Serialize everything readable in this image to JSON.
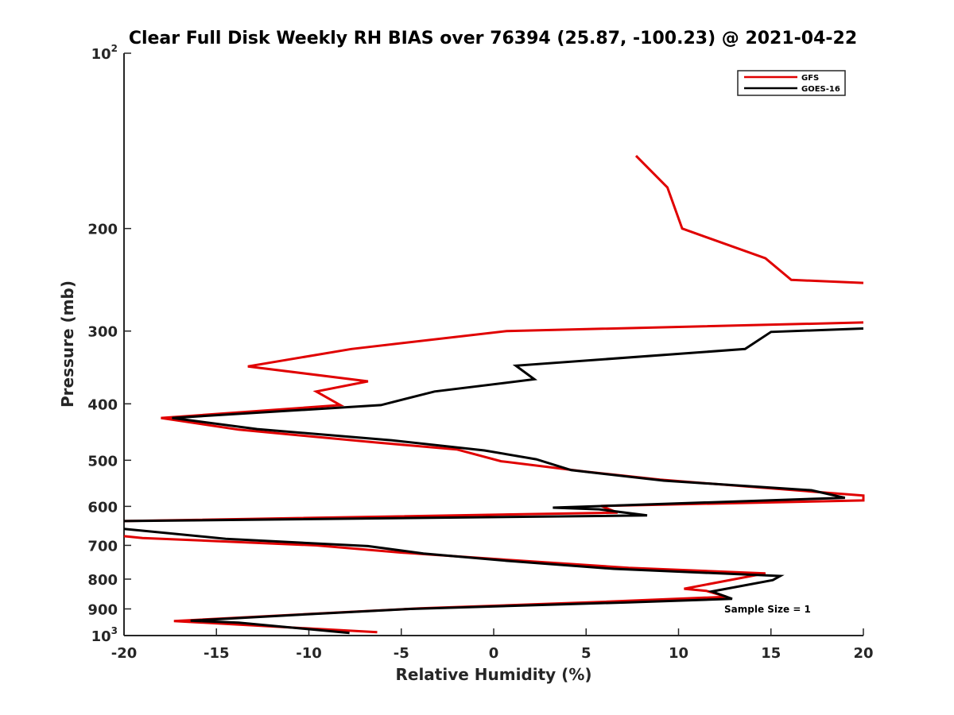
{
  "chart_data": {
    "type": "line",
    "title": "Clear Full Disk Weekly RH BIAS over 76394 (25.87, -100.23) @ 2021-04-22",
    "xlabel": "Relative Humidity (%)",
    "ylabel": "Pressure (mb)",
    "xlim": [
      -20,
      20
    ],
    "ylim": [
      100,
      1000
    ],
    "y_scale": "log",
    "y_reversed": true,
    "grid": false,
    "legend_position": "top-right",
    "x_ticks": [
      "-20",
      "-15",
      "-10",
      "-5",
      "0",
      "5",
      "10",
      "15",
      "20"
    ],
    "y_ticks": [
      {
        "base": "10",
        "sup": "2"
      },
      {
        "base": "200",
        "sup": ""
      },
      {
        "base": "300",
        "sup": ""
      },
      {
        "base": "400",
        "sup": ""
      },
      {
        "base": "500",
        "sup": ""
      },
      {
        "base": "600",
        "sup": ""
      },
      {
        "base": "700",
        "sup": ""
      },
      {
        "base": "800",
        "sup": ""
      },
      {
        "base": "900",
        "sup": ""
      },
      {
        "base": "10",
        "sup": "3"
      }
    ],
    "annotation": "Sample Size = 1",
    "series": [
      {
        "name": "GFS",
        "color": "#e00000",
        "segments": [
          [
            [
              7.7,
              150
            ],
            [
              9.4,
              170
            ],
            [
              10.2,
              200
            ],
            [
              14.7,
              225
            ],
            [
              16.1,
              245
            ],
            [
              20.0,
              248
            ]
          ],
          [
            [
              20.0,
              290
            ],
            [
              0.7,
              300
            ],
            [
              -7.7,
              322
            ],
            [
              -13.3,
              345
            ],
            [
              -6.8,
              366
            ],
            [
              -9.6,
              381
            ],
            [
              -8.3,
              402
            ],
            [
              -18.0,
              423
            ],
            [
              -13.8,
              443
            ],
            [
              -6.4,
              466
            ],
            [
              -2.0,
              479
            ],
            [
              0.4,
              502
            ],
            [
              5.0,
              523
            ],
            [
              9.0,
              540
            ],
            [
              20.0,
              575
            ],
            [
              20.0,
              586
            ],
            [
              5.8,
              599
            ],
            [
              6.7,
              615
            ],
            [
              -20.0,
              636
            ]
          ],
          [
            [
              -20.0,
              675
            ],
            [
              -19.0,
              680
            ],
            [
              -9.6,
              700
            ],
            [
              -5.1,
              720
            ],
            [
              1.2,
              743
            ],
            [
              7.3,
              765
            ],
            [
              14.7,
              782
            ],
            [
              10.3,
              831
            ],
            [
              11.5,
              838
            ],
            [
              12.6,
              858
            ],
            [
              6.0,
              875
            ],
            [
              -4.0,
              898
            ],
            [
              -9.6,
              917
            ],
            [
              -17.3,
              944
            ],
            [
              -6.3,
              987
            ]
          ]
        ]
      },
      {
        "name": "GOES-16",
        "color": "#000000",
        "segments": [
          [
            [
              20.0,
              297
            ],
            [
              15.0,
              301
            ],
            [
              13.6,
              322
            ],
            [
              1.2,
              344
            ],
            [
              2.2,
              363
            ],
            [
              -3.2,
              381
            ],
            [
              -6.1,
              402
            ],
            [
              -17.4,
              423
            ],
            [
              -12.8,
              442
            ],
            [
              -5.5,
              462
            ],
            [
              -0.5,
              481
            ],
            [
              2.3,
              498
            ],
            [
              4.2,
              520
            ],
            [
              9.2,
              542
            ],
            [
              17.2,
              563
            ],
            [
              19.0,
              580
            ],
            [
              3.2,
              603
            ],
            [
              5.7,
              607
            ],
            [
              8.3,
              622
            ],
            [
              -20.0,
              636
            ]
          ],
          [
            [
              -20.0,
              656
            ],
            [
              -14.5,
              682
            ],
            [
              -6.8,
              702
            ],
            [
              -3.8,
              723
            ],
            [
              0.9,
              745
            ],
            [
              6.5,
              768
            ],
            [
              15.5,
              790
            ],
            [
              15.1,
              803
            ],
            [
              11.8,
              840
            ],
            [
              12.9,
              865
            ],
            [
              7.3,
              877
            ],
            [
              -4.5,
              900
            ],
            [
              -10.0,
              919
            ],
            [
              -16.4,
              943
            ],
            [
              -13.8,
              950
            ],
            [
              -7.8,
              990
            ]
          ]
        ]
      }
    ]
  }
}
